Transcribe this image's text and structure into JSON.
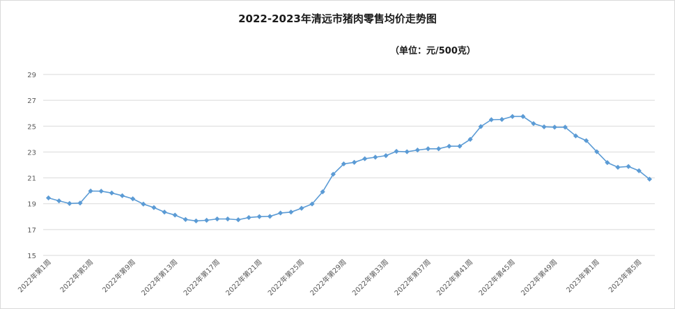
{
  "chart_data": {
    "type": "line",
    "title": "2022-2023年清远市猪肉零售均价走势图",
    "subtitle": "（单位：元/500克）",
    "ylim": [
      15,
      29
    ],
    "yticks": [
      15,
      17,
      19,
      21,
      23,
      25,
      27,
      29
    ],
    "grid": true,
    "legend": "none",
    "line_color": "#5b9bd5",
    "x_tick_labels": [
      "2022年第1周",
      "2022年第5周",
      "2022年第9周",
      "2022年第13周",
      "2022年第17周",
      "2022年第21周",
      "2022年第25周",
      "2022年第29周",
      "2022年第33周",
      "2022年第37周",
      "2022年第41周",
      "2022年第45周",
      "2022年第49周",
      "2023年第1周",
      "2023年第5周"
    ],
    "x_tick_every": 4,
    "series": [
      {
        "values": [
          19.45,
          19.22,
          19.02,
          19.05,
          19.98,
          19.97,
          19.83,
          19.62,
          19.38,
          18.97,
          18.7,
          18.35,
          18.12,
          17.78,
          17.67,
          17.72,
          17.82,
          17.82,
          17.76,
          17.93,
          18.0,
          18.02,
          18.28,
          18.35,
          18.65,
          18.98,
          19.92,
          21.28,
          22.08,
          22.2,
          22.48,
          22.6,
          22.72,
          23.05,
          23.02,
          23.15,
          23.25,
          23.25,
          23.45,
          23.45,
          23.98,
          24.97,
          25.5,
          25.52,
          25.75,
          25.75,
          25.2,
          24.95,
          24.92,
          24.92,
          24.25,
          23.88,
          23.02,
          22.18,
          21.82,
          21.88,
          21.55,
          20.9
        ]
      }
    ]
  }
}
